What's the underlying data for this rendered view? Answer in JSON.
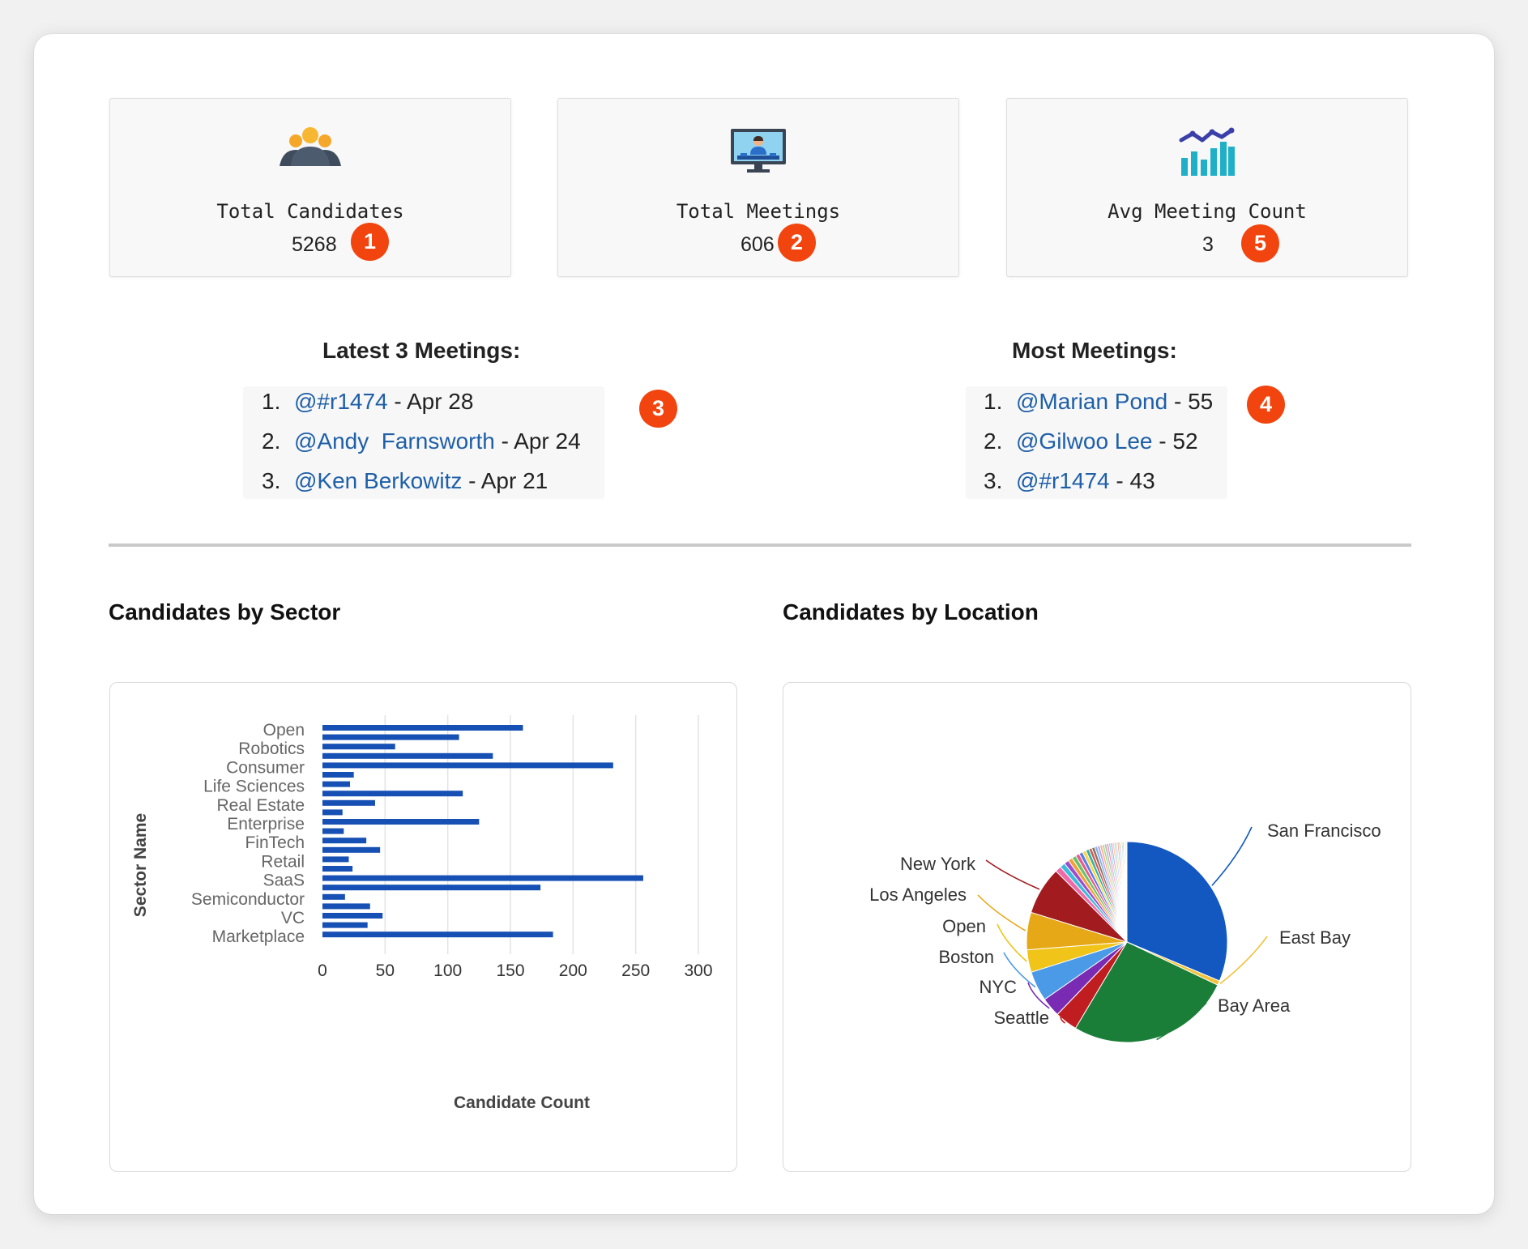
{
  "cards": [
    {
      "label": "Total Candidates",
      "value": "5268",
      "badge": "1",
      "icon": "people-group-icon"
    },
    {
      "label": "Total Meetings",
      "value": "606",
      "badge": "2",
      "icon": "video-meeting-icon"
    },
    {
      "label": "Avg Meeting Count",
      "value": "3",
      "badge": "5",
      "icon": "bar-chart-trend-icon"
    }
  ],
  "latest_meetings": {
    "title": "Latest 3 Meetings:",
    "badge": "3",
    "items": [
      {
        "num": "1.",
        "name": "@#r1474",
        "suffix": " - Apr 28"
      },
      {
        "num": "2.",
        "name": "@Andy  Farnsworth",
        "suffix": " - Apr 24"
      },
      {
        "num": "3.",
        "name": "@Ken Berkowitz",
        "suffix": " - Apr 21"
      }
    ]
  },
  "most_meetings": {
    "title": "Most Meetings:",
    "badge": "4",
    "items": [
      {
        "num": "1.",
        "name": "@Marian Pond",
        "suffix": " - 55"
      },
      {
        "num": "2.",
        "name": "@Gilwoo Lee",
        "suffix": " - 52"
      },
      {
        "num": "3.",
        "name": "@#r1474",
        "suffix": " - 43"
      }
    ]
  },
  "sections": {
    "sector_title": "Candidates by Sector",
    "location_title": "Candidates by Location"
  },
  "colors": {
    "badge": "#f2440e",
    "link": "#1e5fa8",
    "bar": "#1650b4"
  },
  "chart_data": [
    {
      "type": "bar",
      "orientation": "horizontal",
      "xlabel": "Candidate Count",
      "ylabel": "Sector Name",
      "xlim": [
        0,
        300
      ],
      "xticks": [
        "0",
        "50",
        "100",
        "150",
        "200",
        "250",
        "300"
      ],
      "y_tick_labels": [
        "Open",
        "Robotics",
        "Consumer",
        "Life Sciences",
        "Real Estate",
        "Enterprise",
        "FinTech",
        "Retail",
        "SaaS",
        "Semiconductor",
        "VC",
        "Marketplace"
      ],
      "values": [
        160,
        109,
        58,
        136,
        232,
        25,
        22,
        112,
        42,
        16,
        125,
        17,
        35,
        46,
        21,
        24,
        256,
        174,
        18,
        38,
        48,
        36,
        184
      ],
      "grid": true
    },
    {
      "type": "pie",
      "labels": [
        "San Francisco",
        "East Bay",
        "Bay Area",
        "Seattle",
        "NYC",
        "Boston",
        "Open",
        "Los Angeles",
        "New York"
      ],
      "values": [
        1300,
        30,
        1100,
        150,
        130,
        200,
        150,
        250,
        320
      ],
      "other_slices": [
        40,
        35,
        32,
        30,
        28,
        26,
        25,
        24,
        22,
        20,
        20,
        18,
        17,
        16,
        15,
        15,
        14,
        13,
        12,
        12,
        11,
        10,
        10,
        9,
        9,
        8,
        8,
        7,
        7,
        6
      ],
      "colors": [
        "#1258c0",
        "#f2c23a",
        "#1a7e38",
        "#c01d20",
        "#7a2bb3",
        "#4a9ae8",
        "#f0c419",
        "#e6a817",
        "#a11b1f"
      ],
      "other_colors": [
        "#f06aa8",
        "#3dbbd9",
        "#9c4dcc",
        "#f2a03a",
        "#67c36b",
        "#e85c8a",
        "#5b7de8",
        "#f9d64a",
        "#2ab3a3",
        "#d45757",
        "#8d6e63",
        "#7ab7f0",
        "#c6a0e8",
        "#f7b486",
        "#a8d88a",
        "#b0b8c4",
        "#f48fb1",
        "#80deea",
        "#ce93d8",
        "#ffcc80",
        "#90caf9",
        "#c5e1a5",
        "#ef9a9a",
        "#b39ddb",
        "#ffe082",
        "#80cbc4",
        "#bcaaa4",
        "#e6ee9c",
        "#b0bec5",
        "#f8bbd0"
      ]
    }
  ]
}
